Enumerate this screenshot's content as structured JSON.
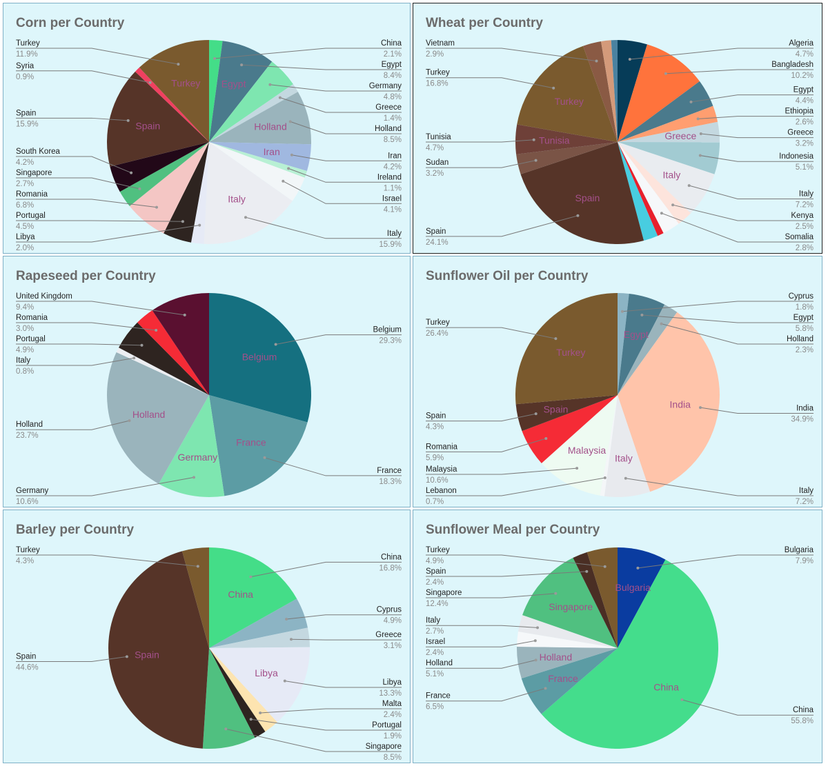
{
  "chart_data": [
    {
      "type": "pie",
      "title": "Corn per Country",
      "slices": [
        {
          "label": "China",
          "value": 2.1,
          "pct_label": "2.1%",
          "color": "#44dd88",
          "side": "right",
          "inner": false
        },
        {
          "label": "Egypt",
          "value": 8.4,
          "pct_label": "8.4%",
          "color": "#4a7a8c",
          "side": "right",
          "inner": true
        },
        {
          "label": "Germany",
          "value": 4.8,
          "pct_label": "4.8%",
          "color": "#7ee6b0",
          "side": "right",
          "inner": false
        },
        {
          "label": "Greece",
          "value": 1.4,
          "pct_label": "1.4%",
          "color": "#c4d8e0",
          "side": "right",
          "inner": false
        },
        {
          "label": "Holland",
          "value": 8.5,
          "pct_label": "8.5%",
          "color": "#9ab4bc",
          "side": "right",
          "inner": true
        },
        {
          "label": "Iran",
          "value": 4.2,
          "pct_label": "4.2%",
          "color": "#a0b8e0",
          "side": "right",
          "inner": true
        },
        {
          "label": "Ireland",
          "value": 1.1,
          "pct_label": "1.1%",
          "color": "#b8f0d4",
          "side": "right",
          "inner": false
        },
        {
          "label": "Israel",
          "value": 4.1,
          "pct_label": "4.1%",
          "color": "#f2f6f8",
          "side": "right",
          "inner": false
        },
        {
          "label": "Italy",
          "value": 15.9,
          "pct_label": "15.9%",
          "color": "#ebedf2",
          "side": "right",
          "inner": true
        },
        {
          "label": "Libya",
          "value": 2.0,
          "pct_label": "2.0%",
          "color": "#e6eaf6",
          "side": "left",
          "inner": false
        },
        {
          "label": "Portugal",
          "value": 4.5,
          "pct_label": "4.5%",
          "color": "#2e2420",
          "side": "left",
          "inner": false
        },
        {
          "label": "Romania",
          "value": 6.8,
          "pct_label": "6.8%",
          "color": "#f4c6c4",
          "side": "left",
          "inner": false
        },
        {
          "label": "Singapore",
          "value": 2.7,
          "pct_label": "2.7%",
          "color": "#50c080",
          "side": "left",
          "inner": false
        },
        {
          "label": "South Korea",
          "value": 4.2,
          "pct_label": "4.2%",
          "color": "#220818",
          "side": "left",
          "inner": false
        },
        {
          "label": "Spain",
          "value": 15.9,
          "pct_label": "15.9%",
          "color": "#563428",
          "side": "left",
          "inner": true
        },
        {
          "label": "Syria",
          "value": 0.9,
          "pct_label": "0.9%",
          "color": "#f04060",
          "side": "left",
          "inner": false
        },
        {
          "label": "Turkey",
          "value": 11.9,
          "pct_label": "11.9%",
          "color": "#7a5a2e",
          "side": "left",
          "inner": true
        }
      ]
    },
    {
      "type": "pie",
      "title": "Wheat per Country",
      "slices": [
        {
          "label": "Algeria",
          "value": 4.7,
          "pct_label": "4.7%",
          "color": "#063c58",
          "side": "right",
          "inner": false
        },
        {
          "label": "Bangladesh",
          "value": 10.2,
          "pct_label": "10.2%",
          "color": "#ff733c",
          "side": "right",
          "inner": false
        },
        {
          "label": "Egypt",
          "value": 4.4,
          "pct_label": "4.4%",
          "color": "#4a7a8c",
          "side": "right",
          "inner": false
        },
        {
          "label": "Ethiopia",
          "value": 2.6,
          "pct_label": "2.6%",
          "color": "#ff9e70",
          "side": "right",
          "inner": false
        },
        {
          "label": "Greece",
          "value": 3.2,
          "pct_label": "3.2%",
          "color": "#c4d8e0",
          "side": "right",
          "inner": true
        },
        {
          "label": "Indonesia",
          "value": 5.1,
          "pct_label": "5.1%",
          "color": "#a2cbd2",
          "side": "right",
          "inner": false
        },
        {
          "label": "Italy",
          "value": 7.2,
          "pct_label": "7.2%",
          "color": "#e9ecf0",
          "side": "right",
          "inner": true
        },
        {
          "label": "Kenya",
          "value": 2.5,
          "pct_label": "2.5%",
          "color": "#fde4dc",
          "side": "right",
          "inner": false
        },
        {
          "label": "Somalia",
          "value": 2.8,
          "pct_label": "2.8%",
          "color": "#f6f8fa",
          "side": "right",
          "inner": false
        },
        {
          "label": "",
          "value": 1.0,
          "pct_label": "",
          "color": "#e8202c",
          "side": "none",
          "inner": false
        },
        {
          "label": "",
          "value": 2.3,
          "pct_label": "",
          "color": "#48cde0",
          "side": "none",
          "inner": false
        },
        {
          "label": "Spain",
          "value": 24.1,
          "pct_label": "24.1%",
          "color": "#563428",
          "side": "left",
          "inner": true
        },
        {
          "label": "Sudan",
          "value": 3.2,
          "pct_label": "3.2%",
          "color": "#7a5446",
          "side": "left",
          "inner": false
        },
        {
          "label": "Tunisia",
          "value": 4.7,
          "pct_label": "4.7%",
          "color": "#6e4038",
          "side": "left",
          "inner": true
        },
        {
          "label": "Turkey",
          "value": 16.8,
          "pct_label": "16.8%",
          "color": "#7a5a2e",
          "side": "left",
          "inner": true
        },
        {
          "label": "Vietnam",
          "value": 2.9,
          "pct_label": "2.9%",
          "color": "#8a5a44",
          "side": "left",
          "inner": false
        },
        {
          "label": "",
          "value": 1.6,
          "pct_label": "",
          "color": "#d49a7a",
          "side": "none",
          "inner": false
        },
        {
          "label": "",
          "value": 1.0,
          "pct_label": "",
          "color": "#4a82a0",
          "side": "none",
          "inner": false
        }
      ]
    },
    {
      "type": "pie",
      "title": "Rapeseed per Country",
      "slices": [
        {
          "label": "Belgium",
          "value": 29.3,
          "pct_label": "29.3%",
          "color": "#157080",
          "side": "right",
          "inner": true
        },
        {
          "label": "France",
          "value": 18.3,
          "pct_label": "18.3%",
          "color": "#5c9ca4",
          "side": "right",
          "inner": true
        },
        {
          "label": "Germany",
          "value": 10.6,
          "pct_label": "10.6%",
          "color": "#7ee6b0",
          "side": "left",
          "inner": true
        },
        {
          "label": "Holland",
          "value": 23.7,
          "pct_label": "23.7%",
          "color": "#9ab4bc",
          "side": "left",
          "inner": true
        },
        {
          "label": "Italy",
          "value": 0.8,
          "pct_label": "0.8%",
          "color": "#eceef2",
          "side": "left",
          "inner": false
        },
        {
          "label": "Portugal",
          "value": 4.9,
          "pct_label": "4.9%",
          "color": "#2e2420",
          "side": "left",
          "inner": false
        },
        {
          "label": "Romania",
          "value": 3.0,
          "pct_label": "3.0%",
          "color": "#f52b36",
          "side": "left",
          "inner": false
        },
        {
          "label": "United Kingdom",
          "value": 9.4,
          "pct_label": "9.4%",
          "color": "#5a1030",
          "side": "left",
          "inner": false
        }
      ]
    },
    {
      "type": "pie",
      "title": "Sunflower Oil per Country",
      "slices": [
        {
          "label": "Cyprus",
          "value": 1.8,
          "pct_label": "1.8%",
          "color": "#8cb4c4",
          "side": "right",
          "inner": false
        },
        {
          "label": "Egypt",
          "value": 5.8,
          "pct_label": "5.8%",
          "color": "#4a7a8c",
          "side": "right",
          "inner": true
        },
        {
          "label": "Holland",
          "value": 2.3,
          "pct_label": "2.3%",
          "color": "#9ab4bc",
          "side": "right",
          "inner": false
        },
        {
          "label": "India",
          "value": 34.9,
          "pct_label": "34.9%",
          "color": "#ffc4aa",
          "side": "right",
          "inner": true
        },
        {
          "label": "Italy",
          "value": 7.2,
          "pct_label": "7.2%",
          "color": "#e8eaee",
          "side": "right",
          "inner": true
        },
        {
          "label": "Lebanon",
          "value": 0.7,
          "pct_label": "0.7%",
          "color": "#f4f6f8",
          "side": "left",
          "inner": false
        },
        {
          "label": "Malaysia",
          "value": 10.6,
          "pct_label": "10.6%",
          "color": "#eefbf2",
          "side": "left",
          "inner": true
        },
        {
          "label": "Romania",
          "value": 5.9,
          "pct_label": "5.9%",
          "color": "#f52b36",
          "side": "left",
          "inner": false
        },
        {
          "label": "Spain",
          "value": 4.3,
          "pct_label": "4.3%",
          "color": "#563428",
          "side": "left",
          "inner": true
        },
        {
          "label": "Turkey",
          "value": 26.4,
          "pct_label": "26.4%",
          "color": "#7a5a2e",
          "side": "left",
          "inner": true
        }
      ]
    },
    {
      "type": "pie",
      "title": "Barley per Country",
      "slices": [
        {
          "label": "China",
          "value": 16.8,
          "pct_label": "16.8%",
          "color": "#44dd88",
          "side": "right",
          "inner": true
        },
        {
          "label": "Cyprus",
          "value": 4.9,
          "pct_label": "4.9%",
          "color": "#8cb4c4",
          "side": "right",
          "inner": false
        },
        {
          "label": "Greece",
          "value": 3.1,
          "pct_label": "3.1%",
          "color": "#c4d8e0",
          "side": "right",
          "inner": false
        },
        {
          "label": "Libya",
          "value": 13.3,
          "pct_label": "13.3%",
          "color": "#e6eaf6",
          "side": "right",
          "inner": true
        },
        {
          "label": "Malta",
          "value": 2.4,
          "pct_label": "2.4%",
          "color": "#fde4b0",
          "side": "right",
          "inner": false
        },
        {
          "label": "Portugal",
          "value": 1.9,
          "pct_label": "1.9%",
          "color": "#2e2420",
          "side": "right",
          "inner": false
        },
        {
          "label": "Singapore",
          "value": 8.5,
          "pct_label": "8.5%",
          "color": "#50c080",
          "side": "right",
          "inner": false
        },
        {
          "label": "Spain",
          "value": 44.6,
          "pct_label": "44.6%",
          "color": "#563428",
          "side": "left",
          "inner": true
        },
        {
          "label": "Turkey",
          "value": 4.3,
          "pct_label": "4.3%",
          "color": "#7a5a2e",
          "side": "left",
          "inner": false
        }
      ]
    },
    {
      "type": "pie",
      "title": "Sunflower Meal per Country",
      "slices": [
        {
          "label": "Bulgaria",
          "value": 7.9,
          "pct_label": "7.9%",
          "color": "#0a3ca0",
          "side": "right",
          "inner": true
        },
        {
          "label": "China",
          "value": 55.8,
          "pct_label": "55.8%",
          "color": "#44dd8c",
          "side": "right",
          "inner": true
        },
        {
          "label": "France",
          "value": 6.5,
          "pct_label": "6.5%",
          "color": "#5c9ca4",
          "side": "left",
          "inner": true
        },
        {
          "label": "Holland",
          "value": 5.1,
          "pct_label": "5.1%",
          "color": "#9ab4bc",
          "side": "left",
          "inner": true
        },
        {
          "label": "Israel",
          "value": 2.4,
          "pct_label": "2.4%",
          "color": "#f6f8fa",
          "side": "left",
          "inner": false
        },
        {
          "label": "Italy",
          "value": 2.7,
          "pct_label": "2.7%",
          "color": "#e8eaee",
          "side": "left",
          "inner": false
        },
        {
          "label": "Singapore",
          "value": 12.4,
          "pct_label": "12.4%",
          "color": "#50c080",
          "side": "left",
          "inner": true
        },
        {
          "label": "Spain",
          "value": 2.4,
          "pct_label": "2.4%",
          "color": "#4a2e24",
          "side": "left",
          "inner": false
        },
        {
          "label": "Turkey",
          "value": 4.9,
          "pct_label": "4.9%",
          "color": "#7a5a2e",
          "side": "left",
          "inner": false
        }
      ]
    }
  ]
}
